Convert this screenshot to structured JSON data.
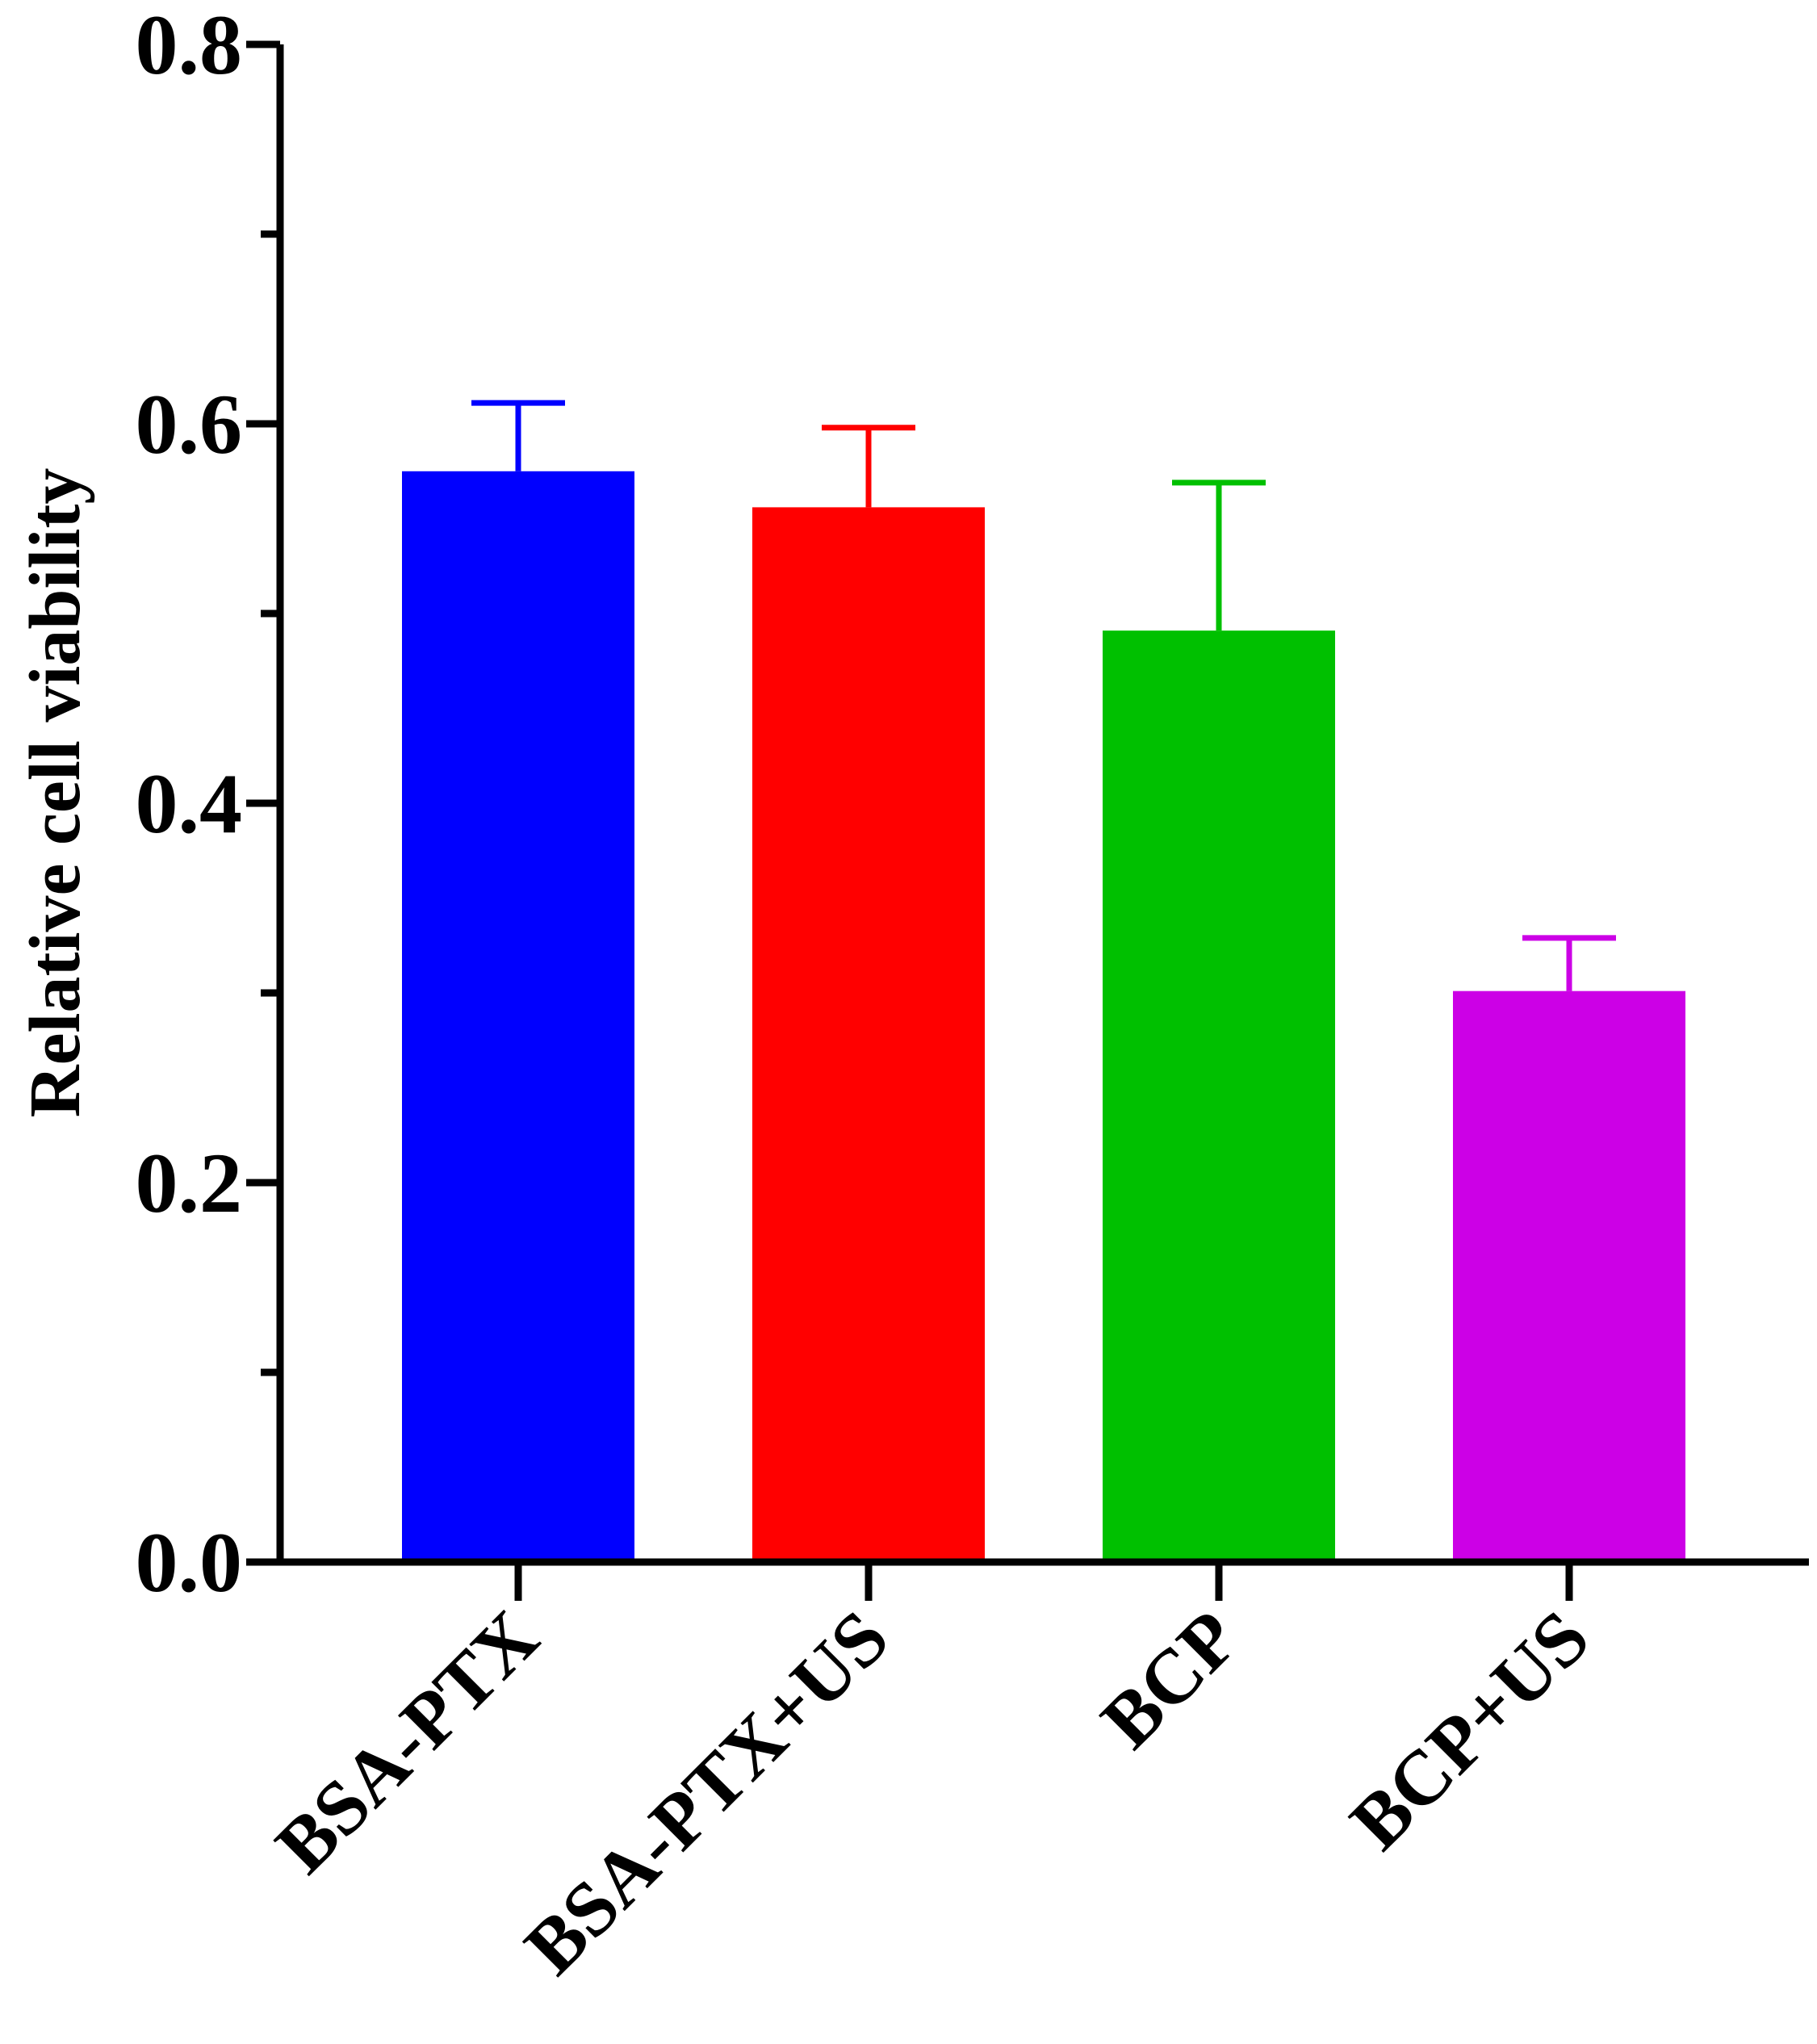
{
  "chart_data": {
    "type": "bar",
    "title": "",
    "xlabel": "",
    "ylabel": "Relative cell viability",
    "ylim": [
      0,
      0.8
    ],
    "yticks_major": [
      0.0,
      0.2,
      0.4,
      0.6,
      0.8
    ],
    "yticks_major_labels": [
      "0.0",
      "0.2",
      "0.4",
      "0.6",
      "0.8"
    ],
    "yticks_minor": [
      0.1,
      0.3,
      0.5,
      0.7
    ],
    "grid": false,
    "categories": [
      "BSA-PTX",
      "BSA-PTX+US",
      "BCP",
      "BCP+US"
    ],
    "values": [
      0.575,
      0.556,
      0.491,
      0.301
    ],
    "error_upper": [
      0.036,
      0.042,
      0.078,
      0.028
    ],
    "colors": [
      "#0000ff",
      "#ff0000",
      "#00c000",
      "#cc00e6"
    ]
  }
}
